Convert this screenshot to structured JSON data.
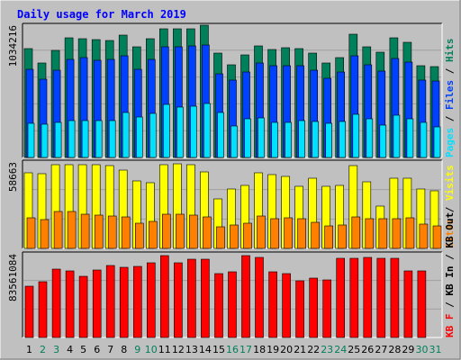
{
  "chart_data": {
    "type": "bar",
    "title": "Daily usage for March 2019",
    "days": [
      "1",
      "2",
      "3",
      "4",
      "5",
      "6",
      "7",
      "8",
      "9",
      "10",
      "11",
      "12",
      "13",
      "14",
      "15",
      "16",
      "17",
      "18",
      "19",
      "20",
      "21",
      "22",
      "23",
      "24",
      "25",
      "26",
      "27",
      "28",
      "29",
      "30",
      "31"
    ],
    "weekend_days": [
      "2",
      "3",
      "9",
      "10",
      "16",
      "17",
      "23",
      "24",
      "30",
      "31"
    ],
    "panels": [
      {
        "id": "hits-files-pages",
        "ymax_label": "1034216",
        "ymax": 1034216,
        "right_legend": [
          "Pages",
          "/",
          "Files",
          "/",
          "Hits"
        ],
        "series": [
          {
            "name": "Hits",
            "color": "#00805a",
            "values": [
              860000,
              750000,
              850000,
              950000,
              945000,
              935000,
              930000,
              970000,
              880000,
              940000,
              1020000,
              1020000,
              1020000,
              1050000,
              825000,
              735000,
              810000,
              885000,
              855000,
              870000,
              860000,
              825000,
              750000,
              790000,
              975000,
              880000,
              835000,
              950000,
              910000,
              730000,
              720000
            ]
          },
          {
            "name": "Files",
            "color": "#0040ff",
            "values": [
              700000,
              620000,
              690000,
              780000,
              790000,
              770000,
              775000,
              805000,
              700000,
              775000,
              875000,
              875000,
              885000,
              895000,
              665000,
              610000,
              675000,
              750000,
              730000,
              725000,
              725000,
              690000,
              625000,
              680000,
              805000,
              735000,
              685000,
              785000,
              755000,
              610000,
              605000
            ]
          },
          {
            "name": "Pages",
            "color": "#00e0ff",
            "values": [
              270000,
              265000,
              275000,
              290000,
              295000,
              295000,
              290000,
              360000,
              320000,
              350000,
              420000,
              400000,
              405000,
              425000,
              360000,
              250000,
              305000,
              315000,
              280000,
              275000,
              290000,
              285000,
              270000,
              285000,
              345000,
              305000,
              255000,
              335000,
              305000,
              275000,
              240000
            ]
          }
        ]
      },
      {
        "id": "visits-sites",
        "ymax_label": "58663",
        "ymax": 58663,
        "right_legend": [
          "Sites",
          "/",
          "Visits"
        ],
        "series": [
          {
            "name": "Visits",
            "color": "#ffff00",
            "values": [
              52500,
              51500,
              58000,
              58200,
              58200,
              58200,
              57300,
              54000,
              46600,
              45800,
              58000,
              58600,
              57800,
              53300,
              34200,
              41500,
              43500,
              52600,
              51300,
              49700,
              43000,
              48600,
              43300,
              43400,
              57300,
              46400,
              29400,
              48400,
              48600,
              40900,
              39900
            ]
          },
          {
            "name": "Sites",
            "color": "#ff8000",
            "values": [
              21100,
              19700,
              25400,
              25800,
              23600,
              23200,
              22300,
              21700,
              17600,
              18600,
              23800,
              23600,
              23300,
              21600,
              15000,
              16000,
              17400,
              22400,
              20700,
              21000,
              20900,
              18400,
              15800,
              16400,
              22000,
              20900,
              20900,
              20600,
              21100,
              16600,
              15800
            ]
          }
        ]
      },
      {
        "id": "kbytes",
        "ymax_label": "83561084",
        "ymax": 83561084,
        "right_legend": [
          "KB F",
          "/",
          "KB In",
          "/",
          "KB Out"
        ],
        "series": [
          {
            "name": "KB F",
            "color": "#ff0000",
            "values": [
              52000000,
              57000000,
              70000000,
              68000000,
              62500000,
              69000000,
              73500000,
              72000000,
              72500000,
              76000000,
              83500000,
              76000000,
              80000000,
              79500000,
              65000000,
              67000000,
              83500000,
              81500000,
              67000000,
              65000000,
              58000000,
              61000000,
              58500000,
              80500000,
              80500000,
              81500000,
              81000000,
              81000000,
              67500000,
              67500000,
              null
            ]
          }
        ]
      }
    ],
    "grid": true,
    "bottom_axis": "days 1-31"
  },
  "colors": {
    "background": "#c0c0c0",
    "plot_background": "#c0c0c0",
    "title": "#0000ff",
    "day_label": "#000000",
    "weekend_label": "#00805a"
  }
}
